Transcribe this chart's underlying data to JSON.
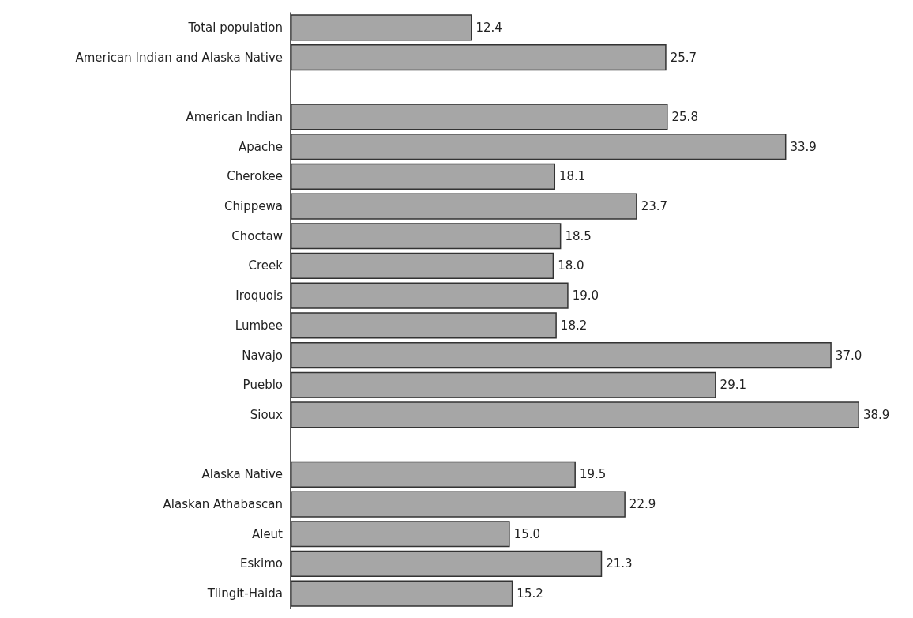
{
  "chart_data": {
    "type": "bar",
    "orientation": "horizontal",
    "categories": [
      "Total population",
      "American Indian and Alaska Native",
      null,
      "American Indian",
      "Apache",
      "Cherokee",
      "Chippewa",
      "Choctaw",
      "Creek",
      "Iroquois",
      "Lumbee",
      "Navajo",
      "Pueblo",
      "Sioux",
      null,
      "Alaska Native",
      "Alaskan Athabascan",
      "Aleut",
      "Eskimo",
      "Tlingit-Haida"
    ],
    "values": [
      12.4,
      25.7,
      null,
      25.8,
      33.9,
      18.1,
      23.7,
      18.5,
      18.0,
      19.0,
      18.2,
      37.0,
      29.1,
      38.9,
      null,
      19.5,
      22.9,
      15.0,
      21.3,
      15.2
    ],
    "value_labels": [
      "12.4",
      "25.7",
      null,
      "25.8",
      "33.9",
      "18.1",
      "23.7",
      "18.5",
      "18.0",
      "19.0",
      "18.2",
      "37.0",
      "29.1",
      "38.9",
      null,
      "19.5",
      "22.9",
      "15.0",
      "21.3",
      "15.2"
    ],
    "color": "#a6a6a6"
  }
}
